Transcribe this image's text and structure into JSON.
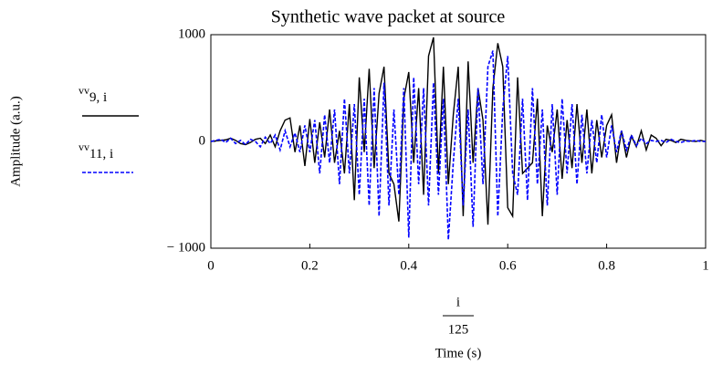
{
  "chart_data": {
    "type": "line",
    "title": "Synthetic wave packet at source",
    "ylabel": "Amplitude (a.u.)",
    "xlabel_fraction": {
      "numerator": "i",
      "denominator": "125"
    },
    "xlabel": "Time (s)",
    "x": [
      0,
      0.01,
      0.02,
      0.03,
      0.04,
      0.05,
      0.06,
      0.07,
      0.08,
      0.09,
      0.1,
      0.11,
      0.12,
      0.13,
      0.14,
      0.15,
      0.16,
      0.17,
      0.18,
      0.19,
      0.2,
      0.21,
      0.22,
      0.23,
      0.24,
      0.25,
      0.26,
      0.27,
      0.28,
      0.29,
      0.3,
      0.31,
      0.32,
      0.33,
      0.34,
      0.35,
      0.36,
      0.37,
      0.38,
      0.39,
      0.4,
      0.41,
      0.42,
      0.43,
      0.44,
      0.45,
      0.46,
      0.47,
      0.48,
      0.49,
      0.5,
      0.51,
      0.52,
      0.53,
      0.54,
      0.55,
      0.56,
      0.57,
      0.58,
      0.59,
      0.6,
      0.61,
      0.62,
      0.63,
      0.64,
      0.65,
      0.66,
      0.67,
      0.68,
      0.69,
      0.7,
      0.71,
      0.72,
      0.73,
      0.74,
      0.75,
      0.76,
      0.77,
      0.78,
      0.79,
      0.8,
      0.81,
      0.82,
      0.83,
      0.84,
      0.85,
      0.86,
      0.87,
      0.88,
      0.89,
      0.9,
      0.91,
      0.92,
      0.93,
      0.94,
      0.95,
      0.96,
      0.97,
      0.98,
      0.99,
      1
    ],
    "series": [
      {
        "name": "vv",
        "subscript": "9, i",
        "color": "#000000",
        "dash": "solid",
        "values": [
          0,
          5,
          10,
          15,
          30,
          10,
          -20,
          -30,
          -10,
          20,
          30,
          -20,
          60,
          -50,
          100,
          200,
          220,
          -100,
          150,
          -230,
          210,
          -200,
          180,
          -150,
          300,
          -200,
          100,
          -300,
          350,
          -550,
          600,
          -100,
          680,
          -250,
          450,
          700,
          -300,
          -400,
          -750,
          400,
          650,
          -200,
          500,
          -500,
          800,
          975,
          -300,
          700,
          -400,
          250,
          700,
          -700,
          750,
          -200,
          500,
          200,
          -780,
          500,
          920,
          700,
          -620,
          -700,
          600,
          -300,
          -250,
          -200,
          400,
          -700,
          150,
          -100,
          300,
          -350,
          200,
          -250,
          350,
          -200,
          300,
          -300,
          200,
          -150,
          150,
          250,
          -200,
          100,
          -150,
          50,
          -50,
          100,
          -80,
          60,
          30,
          -40,
          20,
          10,
          -10,
          20,
          10,
          5,
          0,
          10,
          0
        ]
      },
      {
        "name": "vv",
        "subscript": "11, i",
        "color": "#0000ff",
        "dash": "dotted",
        "values": [
          0,
          10,
          20,
          -10,
          30,
          -20,
          10,
          -30,
          20,
          0,
          -50,
          40,
          -20,
          60,
          -80,
          100,
          -50,
          80,
          -100,
          150,
          -100,
          200,
          -300,
          250,
          -200,
          300,
          -400,
          400,
          -300,
          350,
          -500,
          400,
          -600,
          500,
          -700,
          550,
          -600,
          300,
          -500,
          500,
          -900,
          600,
          -400,
          500,
          -600,
          550,
          -500,
          400,
          -920,
          -200,
          400,
          -600,
          300,
          -800,
          500,
          -400,
          700,
          850,
          -700,
          300,
          800,
          -300,
          -500,
          400,
          -550,
          500,
          -400,
          300,
          -600,
          350,
          -500,
          400,
          -300,
          350,
          -400,
          250,
          -300,
          200,
          -200,
          250,
          -150,
          150,
          -100,
          100,
          -80,
          60,
          -40,
          30,
          -20,
          10,
          0,
          10,
          -10,
          20,
          0,
          -10,
          5,
          0,
          10,
          0,
          0
        ]
      }
    ],
    "xlim": [
      0,
      1
    ],
    "xticks": [
      0,
      0.2,
      0.4,
      0.6,
      0.8,
      1
    ],
    "ylim": [
      -1000,
      1000
    ],
    "yticks": [
      {
        "value": -1000,
        "label": "− 1000"
      },
      0,
      1000
    ]
  }
}
